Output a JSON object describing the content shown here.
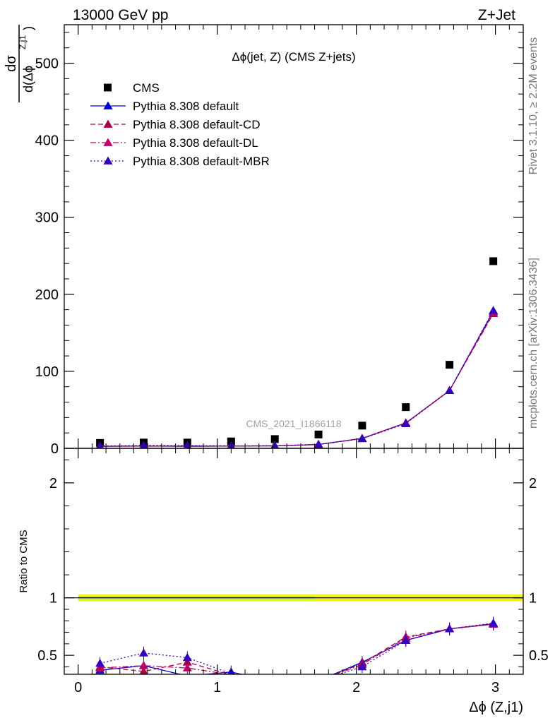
{
  "header": {
    "left": "13000 GeV pp",
    "right": "Z+Jet"
  },
  "side_labels": {
    "rivet": "Rivet 3.1.10, ≥ 2.2M events",
    "mcplots": "mcplots.cern.ch [arXiv:1306.3436]"
  },
  "colors": {
    "cms": "#000000",
    "default": "#0000dd",
    "default_cd": "#aa0044",
    "default_dl": "#bb0066",
    "default_mbr": "#3300bb",
    "band_yellow": "#f0f020",
    "band_green": "#80f050"
  },
  "chart_data": [
    {
      "type": "scatter",
      "title": "Δϕ(jet, Z) (CMS Z+jets)",
      "watermark": "CMS_2021_I1866118",
      "ylabel_num": "dσ",
      "ylabel_den": "d(Δϕ",
      "ylabel_sup": "Z,j1",
      "ylabel_close": ")",
      "xlim": [
        -0.1,
        3.2
      ],
      "ylim": [
        0,
        550
      ],
      "yticks": [
        0,
        100,
        200,
        300,
        400,
        500
      ],
      "ytick_labels": [
        "0",
        "100",
        "200",
        "300",
        "400",
        "500"
      ],
      "legend_position": "top-left",
      "x": [
        0.157,
        0.471,
        0.785,
        1.1,
        1.414,
        1.728,
        2.042,
        2.356,
        2.67,
        2.985
      ],
      "series": [
        {
          "name": "CMS",
          "style": "square",
          "values": [
            7,
            7.5,
            7.5,
            9,
            12,
            18,
            29.5,
            53.5,
            108.5,
            243
          ]
        },
        {
          "name": "Pythia 8.308 default",
          "style": "solid",
          "values": [
            2.5,
            3,
            2.6,
            3,
            3.2,
            5,
            13,
            33,
            75,
            178
          ]
        },
        {
          "name": "Pythia 8.308 default-CD",
          "style": "dashed",
          "values": [
            2.8,
            2.7,
            3.2,
            3,
            3.3,
            5,
            12.8,
            33,
            75,
            175
          ]
        },
        {
          "name": "Pythia 8.308 default-DL",
          "style": "dashdot",
          "values": [
            2.9,
            3.1,
            2.9,
            3,
            3.2,
            5,
            12.9,
            33,
            75,
            176
          ]
        },
        {
          "name": "Pythia 8.308 default-MBR",
          "style": "dotted",
          "values": [
            3.0,
            3.8,
            3.6,
            3.2,
            3.3,
            5.2,
            12.5,
            32,
            75,
            179
          ]
        }
      ]
    },
    {
      "type": "line",
      "ylabel": "Ratio to CMS",
      "xlabel": "Δϕ (Z,j1)",
      "xlim": [
        -0.1,
        3.2
      ],
      "ylim": [
        0.335,
        2.3
      ],
      "xticks": [
        0,
        1,
        2,
        3
      ],
      "xtick_labels": [
        "0",
        "1",
        "2",
        "3"
      ],
      "yticks": [
        0.5,
        1,
        2
      ],
      "ytick_labels": [
        "0.5",
        "1",
        "2"
      ],
      "band": {
        "x_from": 0.0,
        "x_to": 3.2,
        "low": 0.97,
        "high": 1.03
      },
      "x": [
        0.157,
        0.471,
        0.785,
        1.1,
        1.414,
        1.728,
        2.042,
        2.356,
        2.67,
        2.985
      ],
      "series": [
        {
          "name": "Pythia 8.308 default",
          "values": [
            0.37,
            0.41,
            0.32,
            0.355,
            0.27,
            0.28,
            0.44,
            0.63,
            0.73,
            0.775
          ]
        },
        {
          "name": "Pythia 8.308 default-CD",
          "values": [
            0.4,
            0.36,
            0.44,
            0.33,
            0.27,
            0.28,
            0.43,
            0.66,
            0.73,
            0.77
          ]
        },
        {
          "name": "Pythia 8.308 default-DL",
          "values": [
            0.39,
            0.41,
            0.39,
            0.33,
            0.27,
            0.28,
            0.42,
            0.65,
            0.73,
            0.77
          ]
        },
        {
          "name": "Pythia 8.308 default-MBR",
          "values": [
            0.43,
            0.52,
            0.48,
            0.34,
            0.27,
            0.28,
            0.4,
            0.63,
            0.73,
            0.78
          ]
        }
      ]
    }
  ]
}
